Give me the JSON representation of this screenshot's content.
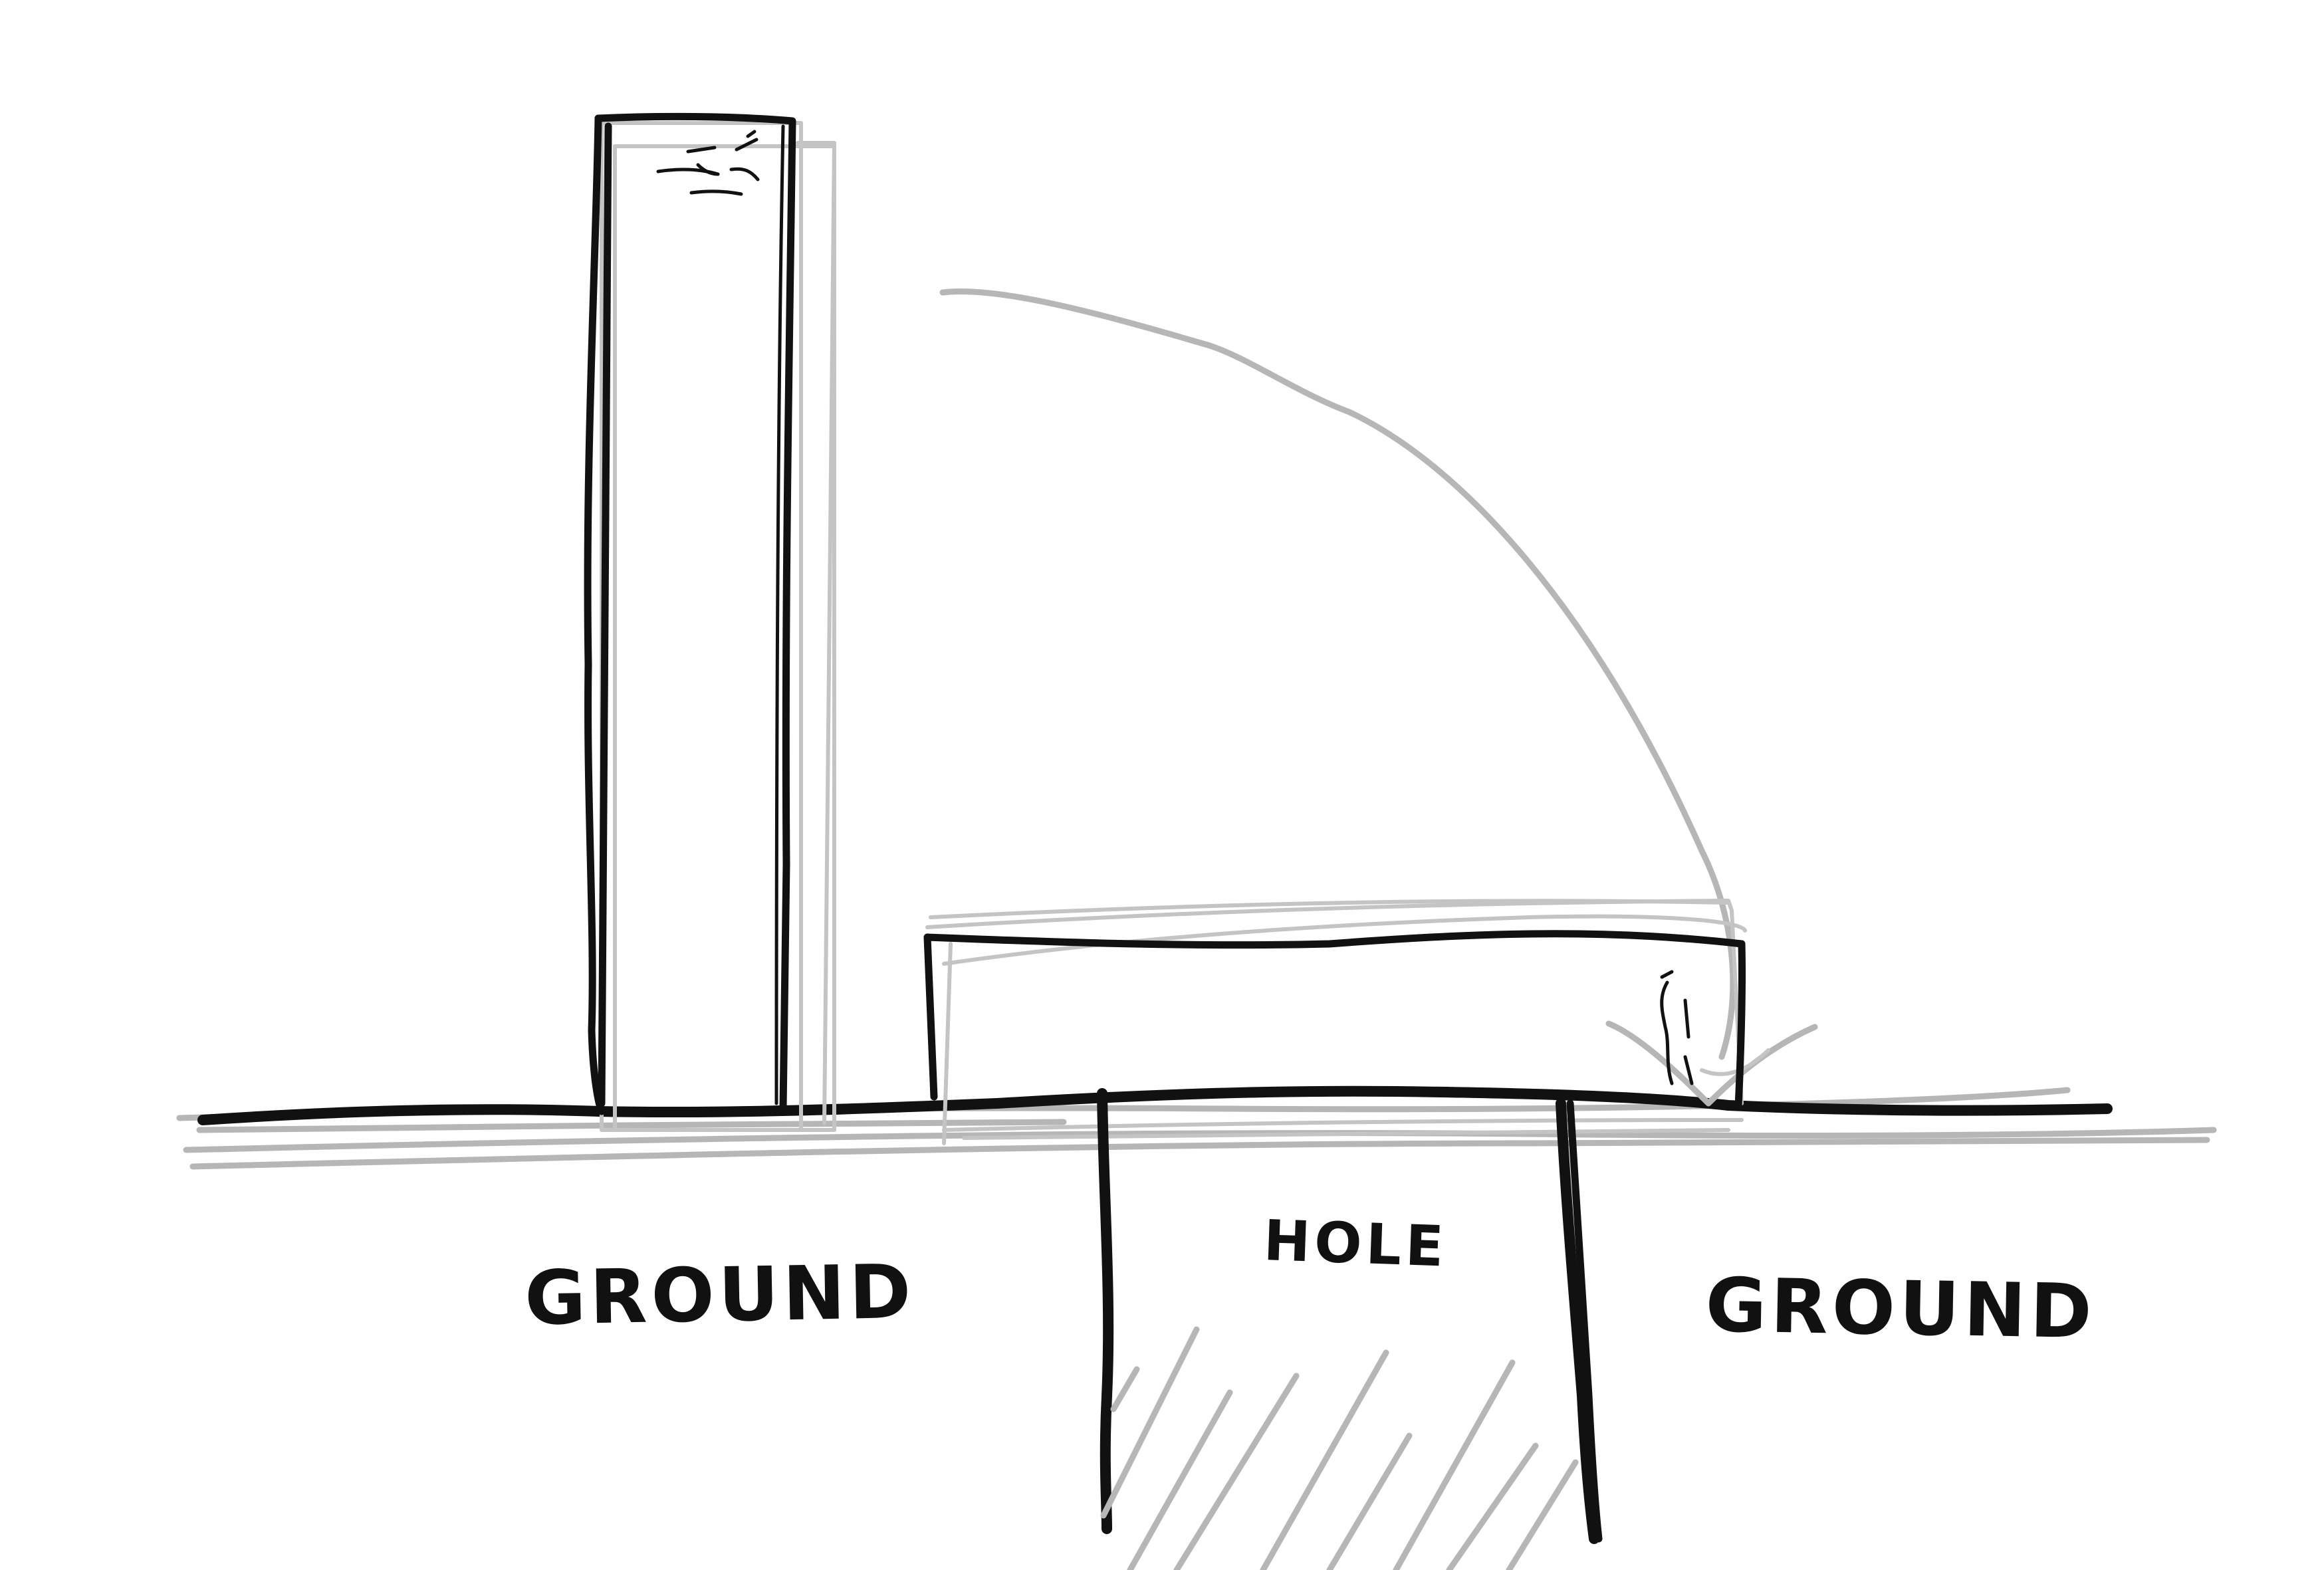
{
  "diagram": {
    "labels": {
      "ground_left": "GROUND",
      "hole": "HOLE",
      "ground_right": "GROUND"
    },
    "colors": {
      "ink": "#111111",
      "pencil": "#b6b6b6",
      "background": "#ffffff"
    },
    "elements": {
      "upright_plank": "standing tall board with grumpy face",
      "fallen_plank": "board lying flat across the hole",
      "arrow": "curved arrow showing the board falling",
      "hole_hatching": "diagonal hatch lines inside the hole"
    }
  }
}
